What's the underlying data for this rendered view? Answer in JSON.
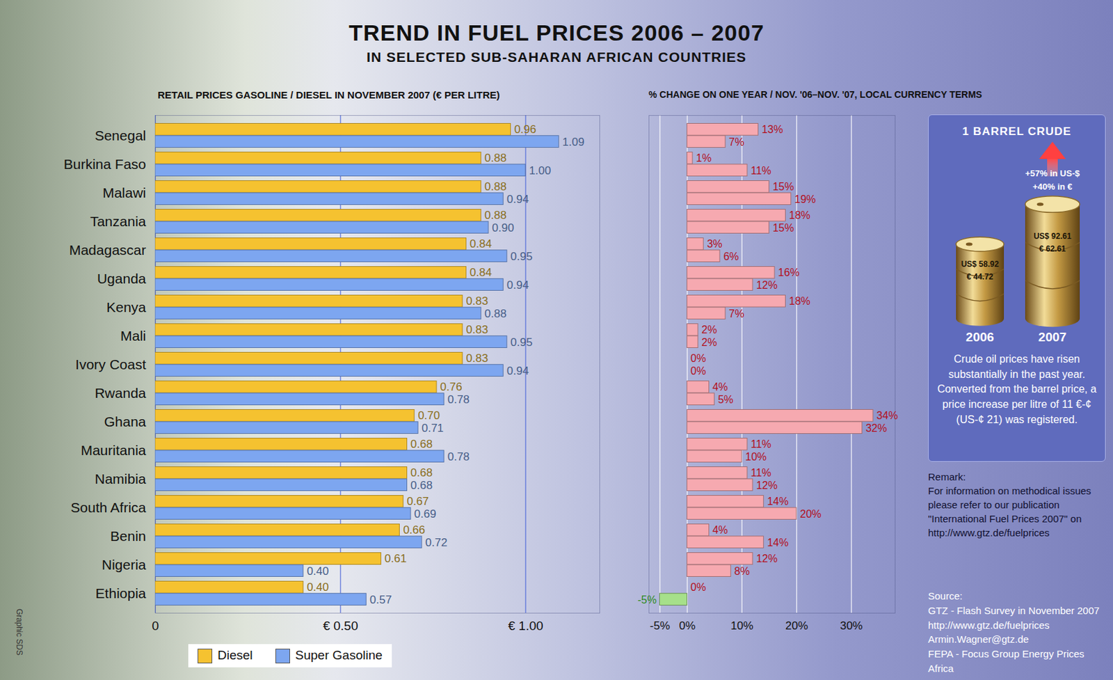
{
  "title": "TREND IN FUEL PRICES 2006 – 2007",
  "subtitle": "IN SELECTED SUB-SAHARAN AFRICAN COUNTRIES",
  "chart_data": [
    {
      "type": "bar",
      "orientation": "horizontal",
      "title": "RETAIL PRICES GASOLINE / DIESEL IN NOVEMBER 2007 (€ PER LITRE)",
      "categories": [
        "Senegal",
        "Burkina Faso",
        "Malawi",
        "Tanzania",
        "Madagascar",
        "Uganda",
        "Kenya",
        "Mali",
        "Ivory Coast",
        "Rwanda",
        "Ghana",
        "Mauritania",
        "Namibia",
        "South Africa",
        "Benin",
        "Nigeria",
        "Ethiopia"
      ],
      "series": [
        {
          "name": "Diesel",
          "color": "#f5c230",
          "values": [
            0.96,
            0.88,
            0.88,
            0.88,
            0.84,
            0.84,
            0.83,
            0.83,
            0.83,
            0.76,
            0.7,
            0.68,
            0.68,
            0.67,
            0.66,
            0.61,
            0.4
          ],
          "value_labels": [
            "0.96",
            "0.88",
            "0.88",
            "0.88",
            "0.84",
            "0.84",
            "0.83",
            "0.83",
            "0.83",
            "0.76",
            "0.70",
            "0.68",
            "0.68",
            "0.67",
            "0.66",
            "0.61",
            "0.40"
          ]
        },
        {
          "name": "Super Gasoline",
          "color": "#7da6f0",
          "values": [
            1.09,
            1.0,
            0.94,
            0.9,
            0.95,
            0.94,
            0.88,
            0.95,
            0.94,
            0.78,
            0.71,
            0.78,
            0.68,
            0.69,
            0.72,
            0.4,
            0.57
          ],
          "value_labels": [
            "1.09",
            "1.00",
            "0.94",
            "0.90",
            "0.95",
            "0.94",
            "0.88",
            "0.95",
            "0.94",
            "0.78",
            "0.71",
            "0.78",
            "0.68",
            "0.69",
            "0.72",
            "0.40",
            "0.57"
          ]
        }
      ],
      "xlim": [
        0,
        1.2
      ],
      "xticks": [
        0,
        {
          "value": 0.5,
          "label": "€ 0.50"
        },
        {
          "value": 1,
          "label": "€ 1.00"
        }
      ],
      "grid": true,
      "legend": "bottom-left",
      "data_labels": true
    },
    {
      "type": "bar",
      "orientation": "horizontal",
      "title": "% CHANGE ON ONE YEAR / NOV. '06–NOV. '07, LOCAL CURRENCY TERMS",
      "categories": [
        "Senegal",
        "Burkina Faso",
        "Malawi",
        "Tanzania",
        "Madagascar",
        "Uganda",
        "Kenya",
        "Mali",
        "Ivory Coast",
        "Rwanda",
        "Ghana",
        "Mauritania",
        "Namibia",
        "South Africa",
        "Benin",
        "Nigeria",
        "Ethiopia"
      ],
      "series": [
        {
          "name": "Diesel",
          "colors": [
            "#f6a9b0",
            "#f6a9b0",
            "#f6a9b0",
            "#f6a9b0",
            "#f6a9b0",
            "#f6a9b0",
            "#f6a9b0",
            "#f6a9b0",
            "#f6a9b0",
            "#f6a9b0",
            "#f6a9b0",
            "#f6a9b0",
            "#f6a9b0",
            "#f6a9b0",
            "#f6a9b0",
            "#f6a9b0",
            "#f6a9b0"
          ],
          "values": [
            13,
            1,
            15,
            18,
            3,
            16,
            18,
            2,
            0,
            4,
            34,
            11,
            11,
            14,
            4,
            12,
            0
          ],
          "value_labels": [
            "13%",
            "1%",
            "15%",
            "18%",
            "3%",
            "16%",
            "18%",
            "2%",
            "0%",
            "4%",
            "34%",
            "11%",
            "11%",
            "14%",
            "4%",
            "12%",
            "0%"
          ]
        },
        {
          "name": "Super Gasoline",
          "colors": [
            "#f6a9b0",
            "#f6a9b0",
            "#f6a9b0",
            "#f6a9b0",
            "#f6a9b0",
            "#f6a9b0",
            "#f6a9b0",
            "#f6a9b0",
            "#f6a9b0",
            "#f6a9b0",
            "#f6a9b0",
            "#f6a9b0",
            "#f6a9b0",
            "#f6a9b0",
            "#f6a9b0",
            "#f6a9b0",
            "#a6e08a"
          ],
          "values": [
            7,
            11,
            19,
            15,
            6,
            12,
            7,
            2,
            0,
            5,
            32,
            10,
            12,
            20,
            14,
            8,
            -5
          ],
          "value_labels": [
            "7%",
            "11%",
            "19%",
            "15%",
            "6%",
            "12%",
            "7%",
            "2%",
            "0%",
            "5%",
            "32%",
            "10%",
            "12%",
            "20%",
            "14%",
            "8%",
            "-5%"
          ]
        }
      ],
      "xlim": [
        -7,
        38
      ],
      "xticks": [
        {
          "value": -5,
          "label": "-5%"
        },
        {
          "value": 0,
          "label": "0%"
        },
        {
          "value": 10,
          "label": "10%"
        },
        {
          "value": 20,
          "label": "20%"
        },
        {
          "value": 30,
          "label": "30%"
        }
      ],
      "grid": true,
      "tick_labels": "x",
      "data_labels": true
    }
  ],
  "crude_box": {
    "title": "1 BARREL CRUDE",
    "change_usd": "+57% in US-$",
    "change_eur": "+40% in €",
    "barrels": [
      {
        "year": "2006",
        "usd": "US$ 58.92",
        "eur": "€ 44.72"
      },
      {
        "year": "2007",
        "usd": "US$ 92.61",
        "eur": "€ 62.61"
      }
    ],
    "note": "Crude oil prices have risen substantially in the past year. Converted from the barrel price, a price increase per litre of 11 €-¢ (US-¢ 21) was registered."
  },
  "remark": {
    "heading": "Remark:",
    "text": "For information on methodical issues please refer to our publication \"International Fuel Prices 2007\" on http://www.gtz.de/fuelprices"
  },
  "source": [
    "Source:",
    "GTZ - Flash Survey in November 2007",
    "http://www.gtz.de/fuelprices",
    "Armin.Wagner@gtz.de",
    "FEPA - Focus Group Energy Prices Africa"
  ],
  "credit": "Graphic SDS"
}
